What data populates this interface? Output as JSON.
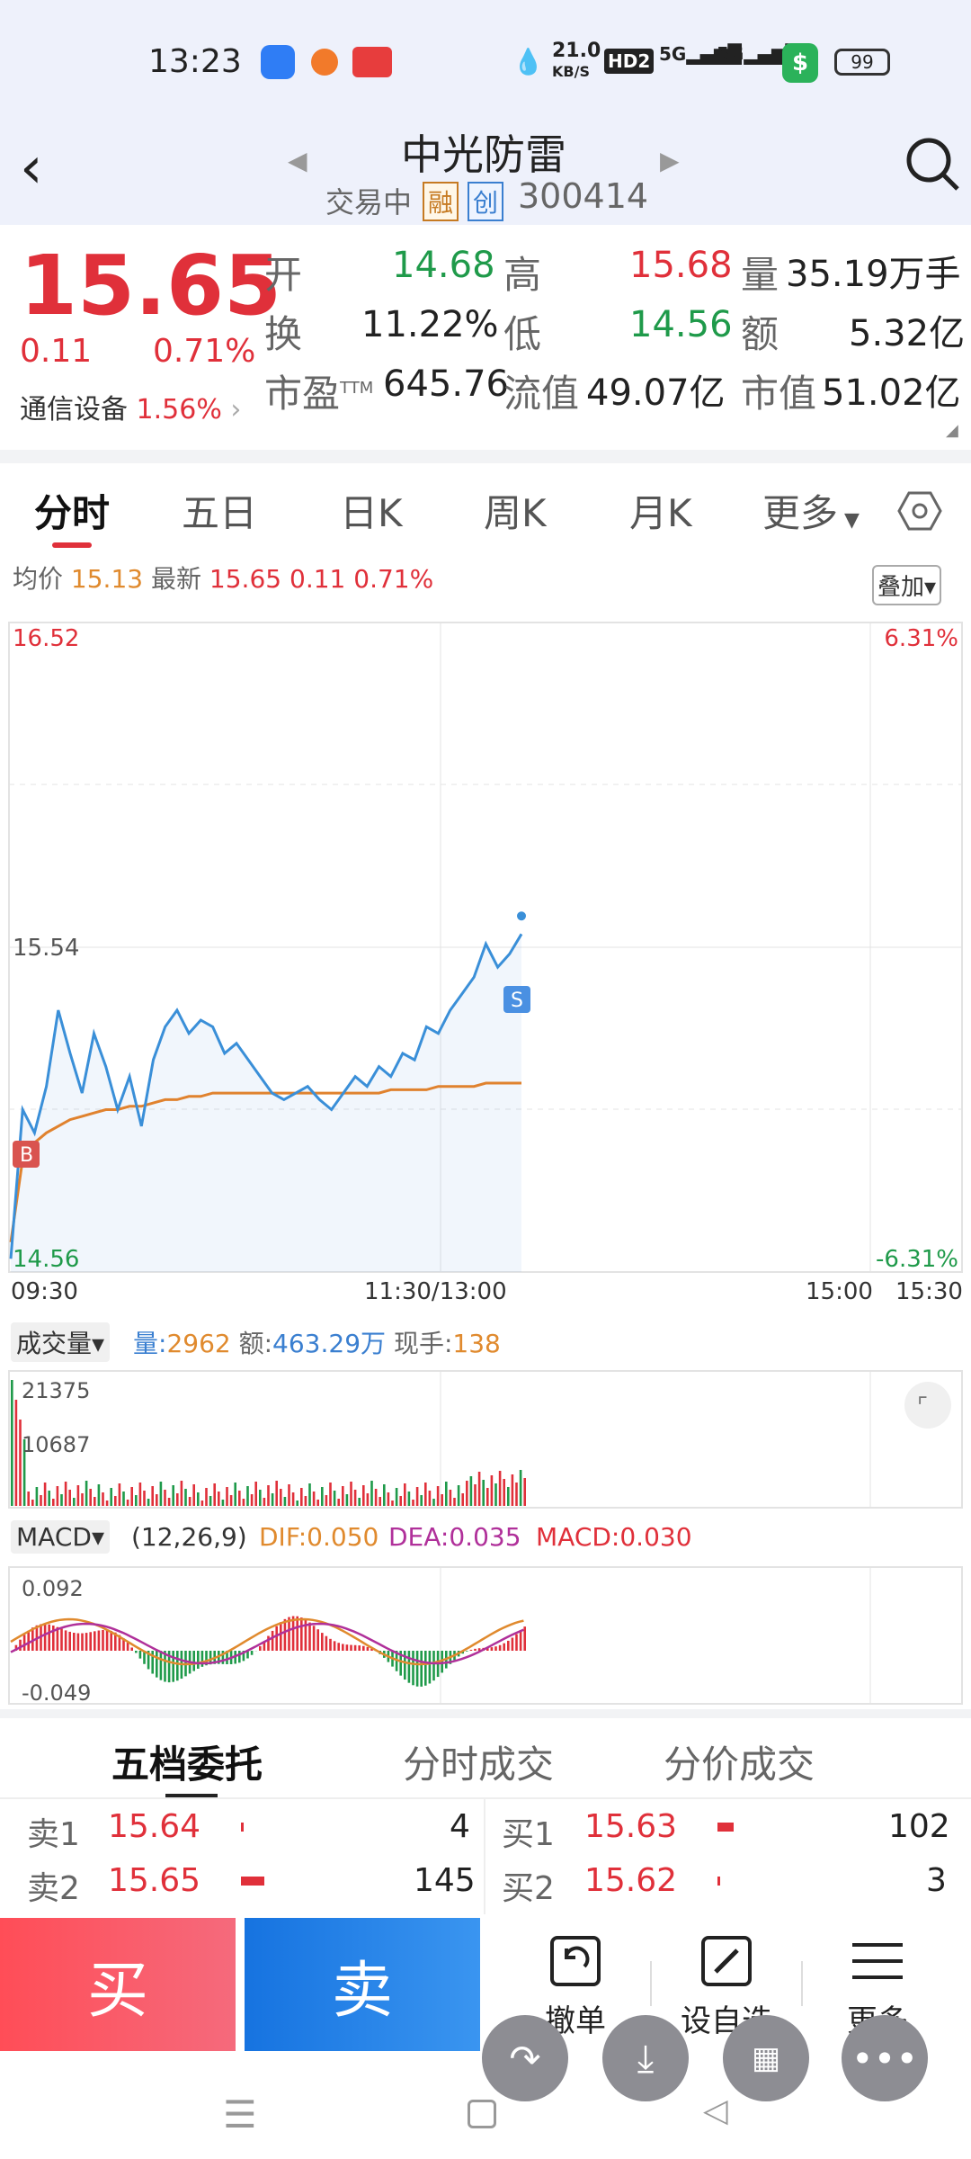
{
  "status_bar": {
    "time": "13:23",
    "net_speed": "21.0",
    "net_unit": "KB/S",
    "hd": "HD2",
    "sig1": "5G",
    "sig2": "5G",
    "battery": "99"
  },
  "header": {
    "title": "中光防雷",
    "trade_status": "交易中",
    "badge_rong": "融",
    "badge_chuang": "创",
    "code": "300414"
  },
  "quote": {
    "price": "15.65",
    "change": "0.11",
    "change_pct": "0.71%",
    "sector": "通信设备",
    "sector_pct": "1.56%",
    "open_label": "开",
    "open": "14.68",
    "high_label": "高",
    "high": "15.68",
    "vol_label": "量",
    "vol": "35.19万手",
    "turnover_label": "换",
    "turnover": "11.22%",
    "low_label": "低",
    "low": "14.56",
    "amount_label": "额",
    "amount": "5.32亿",
    "pe_label": "市盈",
    "pe_sup": "TTM",
    "pe": "645.76",
    "float_label": "流值",
    "float": "49.07亿",
    "mcap_label": "市值",
    "mcap": "51.02亿"
  },
  "tabs": [
    "分时",
    "五日",
    "日K",
    "周K",
    "月K",
    "更多"
  ],
  "chart_info": {
    "avg_label": "均价",
    "avg": "15.13",
    "latest_label": "最新",
    "latest": "15.65",
    "latest_chg": "0.11",
    "latest_pct": "0.71%",
    "overlay_btn": "叠加"
  },
  "chart_data": {
    "type": "line",
    "y_max_label": "16.52",
    "y_mid_label": "15.54",
    "y_min_label": "14.56",
    "pct_max_label": "6.31%",
    "pct_min_label": "-6.31%",
    "x_labels": [
      "09:30",
      "11:30/13:00",
      "15:00",
      "15:30"
    ],
    "ylim": [
      14.56,
      16.52
    ],
    "price": [
      14.6,
      15.05,
      14.98,
      15.12,
      15.35,
      15.22,
      15.1,
      15.28,
      15.18,
      15.05,
      15.15,
      15.0,
      15.2,
      15.3,
      15.35,
      15.28,
      15.32,
      15.3,
      15.22,
      15.25,
      15.2,
      15.15,
      15.1,
      15.08,
      15.1,
      15.12,
      15.08,
      15.05,
      15.1,
      15.15,
      15.12,
      15.18,
      15.15,
      15.22,
      15.2,
      15.3,
      15.28,
      15.35,
      15.4,
      15.45,
      15.55,
      15.48,
      15.52,
      15.58
    ],
    "avg": [
      14.65,
      14.9,
      14.95,
      14.98,
      15.0,
      15.02,
      15.03,
      15.04,
      15.05,
      15.05,
      15.06,
      15.06,
      15.07,
      15.08,
      15.08,
      15.09,
      15.09,
      15.1,
      15.1,
      15.1,
      15.1,
      15.1,
      15.1,
      15.1,
      15.1,
      15.1,
      15.1,
      15.1,
      15.1,
      15.1,
      15.1,
      15.1,
      15.11,
      15.11,
      15.11,
      15.11,
      15.12,
      15.12,
      15.12,
      15.12,
      15.13,
      15.13,
      15.13,
      15.13
    ],
    "markers": {
      "buy": "B",
      "sell": "S"
    }
  },
  "volume": {
    "selector": "成交量",
    "vol_label": "量:",
    "vol": "2962",
    "amt_label": "额:",
    "amt": "463.29万",
    "hand_label": "现手:",
    "hand": "138",
    "max": "21375",
    "mid": "10687"
  },
  "macd": {
    "selector": "MACD",
    "params": "(12,26,9)",
    "dif": "DIF:0.050",
    "dea": "DEA:0.035",
    "macd": "MACD:0.030",
    "top": "0.092",
    "bottom": "-0.049"
  },
  "order_tabs": [
    "五档委托",
    "分时成交",
    "分价成交"
  ],
  "order_book": {
    "sell": [
      {
        "label": "卖1",
        "price": "15.64",
        "qty": "4"
      },
      {
        "label": "卖2",
        "price": "15.65",
        "qty": "145"
      }
    ],
    "buy": [
      {
        "label": "买1",
        "price": "15.63",
        "qty": "102"
      },
      {
        "label": "买2",
        "price": "15.62",
        "qty": "3"
      }
    ]
  },
  "bottom": {
    "buy": "买",
    "sell": "卖",
    "cancel": "撤单",
    "watch": "设自选",
    "more": "更多"
  }
}
